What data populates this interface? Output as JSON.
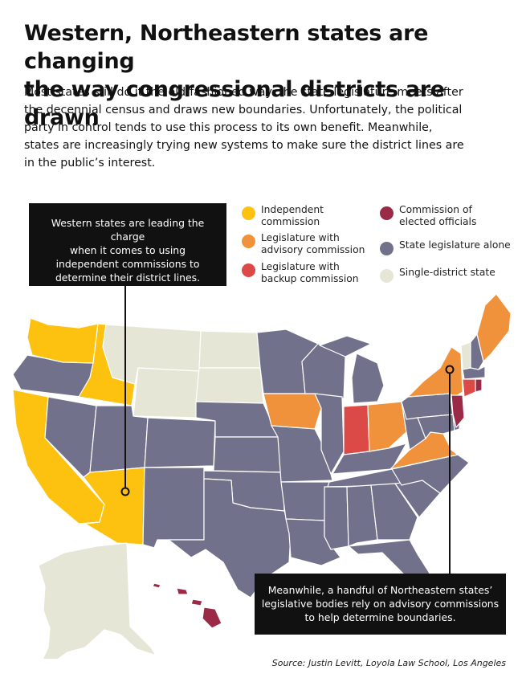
{
  "title": {
    "line1": "Western, Northeastern states are changing",
    "line2": "the way congressional districts are drawn"
  },
  "intro": {
    "lines": [
      "Most states still do it the old-fashioned way: the state legislature meets after",
      "the decennial census and draws new boundaries. Unfortunately, the political",
      "party in control tends to use this process to its own benefit. Meanwhile,",
      "states are increasingly trying new systems to make sure the district lines are",
      "in the public’s interest."
    ]
  },
  "legend": [
    {
      "key": "independent",
      "lines": [
        "Independent",
        "commission"
      ],
      "color": "#FDC20F"
    },
    {
      "key": "advisory",
      "lines": [
        "Legislature with",
        "advisory commission"
      ],
      "color": "#F0913B"
    },
    {
      "key": "backup",
      "lines": [
        "Legislature with",
        "backup commission"
      ],
      "color": "#DC4A47"
    },
    {
      "key": "elected",
      "lines": [
        "Commission of",
        "elected officials"
      ],
      "color": "#9B2A47"
    },
    {
      "key": "legislature",
      "lines": [
        "State legislature alone"
      ],
      "color": "#71718C"
    },
    {
      "key": "single",
      "lines": [
        "Single-district state"
      ],
      "color": "#E6E6D6"
    }
  ],
  "callouts": {
    "west": {
      "lines": [
        "Western states are leading the charge",
        "when it comes to using",
        "independent commissions to",
        "determine their district lines."
      ]
    },
    "northeast": {
      "lines": [
        "Meanwhile, a handful of Northeastern states’",
        "legislative bodies rely on advisory commissions",
        "to help determine boundaries."
      ]
    }
  },
  "source": "Source: Justin Levitt, Loyola Law School, Los Angeles"
}
